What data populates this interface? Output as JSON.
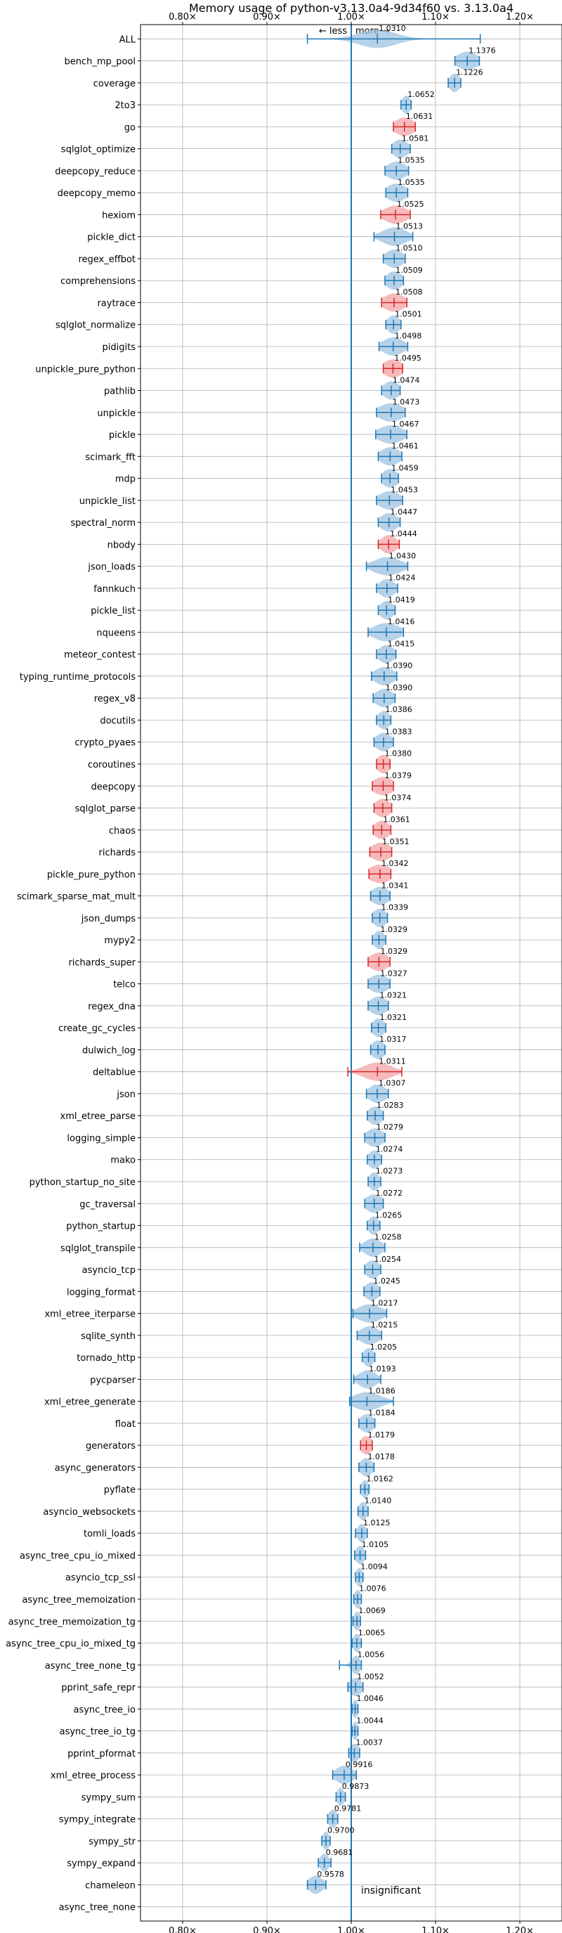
{
  "chart_data": {
    "type": "violin",
    "title": "Memory usage of python-v3.13.0a4-9d34f60 vs. 3.13.0a4",
    "direction_labels": {
      "less": "← less",
      "more": "more →"
    },
    "xlim": [
      0.75,
      1.25
    ],
    "x_ticks": [
      0.8,
      0.9,
      1.0,
      1.1,
      1.2
    ],
    "x_tick_labels": [
      "0.80×",
      "0.90×",
      "1.00×",
      "1.10×",
      "1.20×"
    ],
    "grid": true,
    "reference_x": 1.0,
    "colors": {
      "normal": "#1f77b4",
      "highlight": "#d62728"
    },
    "insignificant_label": "insignificant",
    "benchmarks": [
      {
        "name": "ALL",
        "value": 1.031,
        "low": 0.948,
        "high": 1.153,
        "spread": 0.022,
        "label": "1.0310",
        "highlight": false
      },
      {
        "name": "bench_mp_pool",
        "value": 1.1376,
        "low": 1.123,
        "high": 1.152,
        "spread": 0.012,
        "label": "1.1376",
        "highlight": false
      },
      {
        "name": "coverage",
        "value": 1.1226,
        "low": 1.115,
        "high": 1.13,
        "spread": 0.006,
        "label": "1.1226",
        "highlight": false
      },
      {
        "name": "2to3",
        "value": 1.0652,
        "low": 1.059,
        "high": 1.071,
        "spread": 0.005,
        "label": "1.0652",
        "highlight": false
      },
      {
        "name": "go",
        "value": 1.0631,
        "low": 1.05,
        "high": 1.076,
        "spread": 0.011,
        "label": "1.0631",
        "highlight": true
      },
      {
        "name": "sqlglot_optimize",
        "value": 1.0581,
        "low": 1.048,
        "high": 1.07,
        "spread": 0.009,
        "label": "1.0581",
        "highlight": false
      },
      {
        "name": "deepcopy_reduce",
        "value": 1.0535,
        "low": 1.04,
        "high": 1.068,
        "spread": 0.011,
        "label": "1.0535",
        "highlight": false
      },
      {
        "name": "deepcopy_memo",
        "value": 1.0535,
        "low": 1.041,
        "high": 1.067,
        "spread": 0.011,
        "label": "1.0535",
        "highlight": false
      },
      {
        "name": "hexiom",
        "value": 1.0525,
        "low": 1.035,
        "high": 1.07,
        "spread": 0.013,
        "label": "1.0525",
        "highlight": true
      },
      {
        "name": "pickle_dict",
        "value": 1.0513,
        "low": 1.027,
        "high": 1.073,
        "spread": 0.014,
        "label": "1.0513",
        "highlight": false
      },
      {
        "name": "regex_effbot",
        "value": 1.051,
        "low": 1.038,
        "high": 1.064,
        "spread": 0.01,
        "label": "1.0510",
        "highlight": false
      },
      {
        "name": "comprehensions",
        "value": 1.0509,
        "low": 1.04,
        "high": 1.062,
        "spread": 0.009,
        "label": "1.0509",
        "highlight": false
      },
      {
        "name": "raytrace",
        "value": 1.0508,
        "low": 1.036,
        "high": 1.066,
        "spread": 0.012,
        "label": "1.0508",
        "highlight": true
      },
      {
        "name": "sqlglot_normalize",
        "value": 1.0501,
        "low": 1.041,
        "high": 1.059,
        "spread": 0.007,
        "label": "1.0501",
        "highlight": false
      },
      {
        "name": "pidigits",
        "value": 1.0498,
        "low": 1.033,
        "high": 1.067,
        "spread": 0.012,
        "label": "1.0498",
        "highlight": false
      },
      {
        "name": "unpickle_pure_python",
        "value": 1.0495,
        "low": 1.038,
        "high": 1.061,
        "spread": 0.011,
        "label": "1.0495",
        "highlight": true
      },
      {
        "name": "pathlib",
        "value": 1.0474,
        "low": 1.036,
        "high": 1.058,
        "spread": 0.009,
        "label": "1.0474",
        "highlight": false
      },
      {
        "name": "unpickle",
        "value": 1.0473,
        "low": 1.03,
        "high": 1.064,
        "spread": 0.014,
        "label": "1.0473",
        "highlight": false
      },
      {
        "name": "pickle",
        "value": 1.0467,
        "low": 1.029,
        "high": 1.066,
        "spread": 0.014,
        "label": "1.0467",
        "highlight": false
      },
      {
        "name": "scimark_fft",
        "value": 1.0461,
        "low": 1.032,
        "high": 1.06,
        "spread": 0.011,
        "label": "1.0461",
        "highlight": false
      },
      {
        "name": "mdp",
        "value": 1.0459,
        "low": 1.036,
        "high": 1.056,
        "spread": 0.009,
        "label": "1.0459",
        "highlight": false
      },
      {
        "name": "unpickle_list",
        "value": 1.0453,
        "low": 1.03,
        "high": 1.061,
        "spread": 0.012,
        "label": "1.0453",
        "highlight": false
      },
      {
        "name": "spectral_norm",
        "value": 1.0447,
        "low": 1.032,
        "high": 1.058,
        "spread": 0.01,
        "label": "1.0447",
        "highlight": false
      },
      {
        "name": "nbody",
        "value": 1.0444,
        "low": 1.032,
        "high": 1.057,
        "spread": 0.009,
        "label": "1.0444",
        "highlight": true
      },
      {
        "name": "json_loads",
        "value": 1.043,
        "low": 1.018,
        "high": 1.067,
        "spread": 0.016,
        "label": "1.0430",
        "highlight": false
      },
      {
        "name": "fannkuch",
        "value": 1.0424,
        "low": 1.03,
        "high": 1.055,
        "spread": 0.009,
        "label": "1.0424",
        "highlight": false
      },
      {
        "name": "pickle_list",
        "value": 1.0419,
        "low": 1.032,
        "high": 1.052,
        "spread": 0.008,
        "label": "1.0419",
        "highlight": false
      },
      {
        "name": "nqueens",
        "value": 1.0416,
        "low": 1.02,
        "high": 1.062,
        "spread": 0.015,
        "label": "1.0416",
        "highlight": false
      },
      {
        "name": "meteor_contest",
        "value": 1.0415,
        "low": 1.03,
        "high": 1.053,
        "spread": 0.009,
        "label": "1.0415",
        "highlight": false
      },
      {
        "name": "typing_runtime_protocols",
        "value": 1.039,
        "low": 1.024,
        "high": 1.054,
        "spread": 0.011,
        "label": "1.0390",
        "highlight": false
      },
      {
        "name": "regex_v8",
        "value": 1.039,
        "low": 1.026,
        "high": 1.052,
        "spread": 0.01,
        "label": "1.0390",
        "highlight": false
      },
      {
        "name": "docutils",
        "value": 1.0386,
        "low": 1.03,
        "high": 1.047,
        "spread": 0.007,
        "label": "1.0386",
        "highlight": false
      },
      {
        "name": "crypto_pyaes",
        "value": 1.0383,
        "low": 1.027,
        "high": 1.05,
        "spread": 0.009,
        "label": "1.0383",
        "highlight": false
      },
      {
        "name": "coroutines",
        "value": 1.038,
        "low": 1.03,
        "high": 1.046,
        "spread": 0.008,
        "label": "1.0380",
        "highlight": true
      },
      {
        "name": "deepcopy",
        "value": 1.0379,
        "low": 1.025,
        "high": 1.05,
        "spread": 0.012,
        "label": "1.0379",
        "highlight": true
      },
      {
        "name": "sqlglot_parse",
        "value": 1.0374,
        "low": 1.027,
        "high": 1.048,
        "spread": 0.009,
        "label": "1.0374",
        "highlight": true
      },
      {
        "name": "chaos",
        "value": 1.0361,
        "low": 1.026,
        "high": 1.047,
        "spread": 0.009,
        "label": "1.0361",
        "highlight": true
      },
      {
        "name": "richards",
        "value": 1.0351,
        "low": 1.022,
        "high": 1.048,
        "spread": 0.012,
        "label": "1.0351",
        "highlight": true
      },
      {
        "name": "pickle_pure_python",
        "value": 1.0342,
        "low": 1.021,
        "high": 1.047,
        "spread": 0.013,
        "label": "1.0342",
        "highlight": true
      },
      {
        "name": "scimark_sparse_mat_mult",
        "value": 1.0341,
        "low": 1.023,
        "high": 1.046,
        "spread": 0.01,
        "label": "1.0341",
        "highlight": false
      },
      {
        "name": "json_dumps",
        "value": 1.0339,
        "low": 1.025,
        "high": 1.043,
        "spread": 0.008,
        "label": "1.0339",
        "highlight": false
      },
      {
        "name": "mypy2",
        "value": 1.0329,
        "low": 1.025,
        "high": 1.041,
        "spread": 0.006,
        "label": "1.0329",
        "highlight": false
      },
      {
        "name": "richards_super",
        "value": 1.0329,
        "low": 1.02,
        "high": 1.046,
        "spread": 0.011,
        "label": "1.0329",
        "highlight": true
      },
      {
        "name": "telco",
        "value": 1.0327,
        "low": 1.02,
        "high": 1.046,
        "spread": 0.011,
        "label": "1.0327",
        "highlight": false
      },
      {
        "name": "regex_dna",
        "value": 1.0321,
        "low": 1.02,
        "high": 1.044,
        "spread": 0.01,
        "label": "1.0321",
        "highlight": false
      },
      {
        "name": "create_gc_cycles",
        "value": 1.0321,
        "low": 1.024,
        "high": 1.041,
        "spread": 0.007,
        "label": "1.0321",
        "highlight": false
      },
      {
        "name": "dulwich_log",
        "value": 1.0317,
        "low": 1.023,
        "high": 1.04,
        "spread": 0.008,
        "label": "1.0317",
        "highlight": false
      },
      {
        "name": "deltablue",
        "value": 1.0311,
        "low": 0.996,
        "high": 1.06,
        "spread": 0.016,
        "label": "1.0311",
        "highlight": true
      },
      {
        "name": "json",
        "value": 1.0307,
        "low": 1.018,
        "high": 1.044,
        "spread": 0.01,
        "label": "1.0307",
        "highlight": false
      },
      {
        "name": "xml_etree_parse",
        "value": 1.0283,
        "low": 1.019,
        "high": 1.038,
        "spread": 0.008,
        "label": "1.0283",
        "highlight": false
      },
      {
        "name": "logging_simple",
        "value": 1.0279,
        "low": 1.016,
        "high": 1.04,
        "spread": 0.01,
        "label": "1.0279",
        "highlight": false
      },
      {
        "name": "mako",
        "value": 1.0274,
        "low": 1.019,
        "high": 1.036,
        "spread": 0.007,
        "label": "1.0274",
        "highlight": false
      },
      {
        "name": "python_startup_no_site",
        "value": 1.0273,
        "low": 1.02,
        "high": 1.035,
        "spread": 0.006,
        "label": "1.0273",
        "highlight": false
      },
      {
        "name": "gc_traversal",
        "value": 1.0272,
        "low": 1.016,
        "high": 1.038,
        "spread": 0.01,
        "label": "1.0272",
        "highlight": false
      },
      {
        "name": "python_startup",
        "value": 1.0265,
        "low": 1.019,
        "high": 1.034,
        "spread": 0.006,
        "label": "1.0265",
        "highlight": false
      },
      {
        "name": "sqlglot_transpile",
        "value": 1.0258,
        "low": 1.01,
        "high": 1.04,
        "spread": 0.01,
        "label": "1.0258",
        "highlight": false
      },
      {
        "name": "asyncio_tcp",
        "value": 1.0254,
        "low": 1.016,
        "high": 1.035,
        "spread": 0.008,
        "label": "1.0254",
        "highlight": false
      },
      {
        "name": "logging_format",
        "value": 1.0245,
        "low": 1.015,
        "high": 1.034,
        "spread": 0.008,
        "label": "1.0245",
        "highlight": false
      },
      {
        "name": "xml_etree_iterparse",
        "value": 1.0217,
        "low": 1.002,
        "high": 1.042,
        "spread": 0.014,
        "label": "1.0217",
        "highlight": false
      },
      {
        "name": "sqlite_synth",
        "value": 1.0215,
        "low": 1.007,
        "high": 1.036,
        "spread": 0.011,
        "label": "1.0215",
        "highlight": false
      },
      {
        "name": "tornado_http",
        "value": 1.0205,
        "low": 1.013,
        "high": 1.028,
        "spread": 0.006,
        "label": "1.0205",
        "highlight": false
      },
      {
        "name": "pycparser",
        "value": 1.0193,
        "low": 1.003,
        "high": 1.035,
        "spread": 0.01,
        "label": "1.0193",
        "highlight": false
      },
      {
        "name": "xml_etree_generate",
        "value": 1.0186,
        "low": 0.998,
        "high": 1.05,
        "spread": 0.016,
        "label": "1.0186",
        "highlight": false
      },
      {
        "name": "float",
        "value": 1.0184,
        "low": 1.009,
        "high": 1.028,
        "spread": 0.008,
        "label": "1.0184",
        "highlight": false
      },
      {
        "name": "generators",
        "value": 1.0179,
        "low": 1.011,
        "high": 1.025,
        "spread": 0.007,
        "label": "1.0179",
        "highlight": true
      },
      {
        "name": "async_generators",
        "value": 1.0178,
        "low": 1.009,
        "high": 1.027,
        "spread": 0.007,
        "label": "1.0178",
        "highlight": false
      },
      {
        "name": "pyflate",
        "value": 1.0162,
        "low": 1.011,
        "high": 1.021,
        "spread": 0.004,
        "label": "1.0162",
        "highlight": false
      },
      {
        "name": "asyncio_websockets",
        "value": 1.014,
        "low": 1.008,
        "high": 1.02,
        "spread": 0.005,
        "label": "1.0140",
        "highlight": false
      },
      {
        "name": "tomli_loads",
        "value": 1.0125,
        "low": 1.005,
        "high": 1.019,
        "spread": 0.005,
        "label": "1.0125",
        "highlight": false
      },
      {
        "name": "async_tree_cpu_io_mixed",
        "value": 1.0105,
        "low": 1.004,
        "high": 1.017,
        "spread": 0.005,
        "label": "1.0105",
        "highlight": false
      },
      {
        "name": "asyncio_tcp_ssl",
        "value": 1.0094,
        "low": 1.005,
        "high": 1.014,
        "spread": 0.004,
        "label": "1.0094",
        "highlight": false
      },
      {
        "name": "async_tree_memoization",
        "value": 1.0076,
        "low": 1.003,
        "high": 1.012,
        "spread": 0.004,
        "label": "1.0076",
        "highlight": false
      },
      {
        "name": "async_tree_memoization_tg",
        "value": 1.0069,
        "low": 1.002,
        "high": 1.011,
        "spread": 0.004,
        "label": "1.0069",
        "highlight": false
      },
      {
        "name": "async_tree_cpu_io_mixed_tg",
        "value": 1.0065,
        "low": 1.001,
        "high": 1.012,
        "spread": 0.004,
        "label": "1.0065",
        "highlight": false
      },
      {
        "name": "async_tree_none_tg",
        "value": 1.0056,
        "low": 0.986,
        "high": 1.012,
        "spread": 0.005,
        "label": "1.0056",
        "highlight": false
      },
      {
        "name": "pprint_safe_repr",
        "value": 1.0052,
        "low": 0.996,
        "high": 1.014,
        "spread": 0.007,
        "label": "1.0052",
        "highlight": false
      },
      {
        "name": "async_tree_io",
        "value": 1.0046,
        "low": 1.001,
        "high": 1.008,
        "spread": 0.003,
        "label": "1.0046",
        "highlight": false
      },
      {
        "name": "async_tree_io_tg",
        "value": 1.0044,
        "low": 1.001,
        "high": 1.008,
        "spread": 0.003,
        "label": "1.0044",
        "highlight": false
      },
      {
        "name": "pprint_pformat",
        "value": 1.0037,
        "low": 0.997,
        "high": 1.01,
        "spread": 0.006,
        "label": "1.0037",
        "highlight": false
      },
      {
        "name": "xml_etree_process",
        "value": 0.9916,
        "low": 0.978,
        "high": 1.006,
        "spread": 0.01,
        "label": "0.9916",
        "highlight": false
      },
      {
        "name": "sympy_sum",
        "value": 0.9873,
        "low": 0.982,
        "high": 0.993,
        "spread": 0.004,
        "label": "0.9873",
        "highlight": false
      },
      {
        "name": "sympy_integrate",
        "value": 0.9781,
        "low": 0.972,
        "high": 0.984,
        "spread": 0.005,
        "label": "0.9781",
        "highlight": false
      },
      {
        "name": "sympy_str",
        "value": 0.97,
        "low": 0.965,
        "high": 0.975,
        "spread": 0.004,
        "label": "0.9700",
        "highlight": false
      },
      {
        "name": "sympy_expand",
        "value": 0.9681,
        "low": 0.961,
        "high": 0.976,
        "spread": 0.005,
        "label": "0.9681",
        "highlight": false
      },
      {
        "name": "chameleon",
        "value": 0.9578,
        "low": 0.948,
        "high": 0.97,
        "spread": 0.008,
        "label": "0.9578",
        "highlight": false
      },
      {
        "name": "async_tree_none",
        "value": null,
        "low": null,
        "high": null,
        "spread": null,
        "label": "",
        "highlight": false,
        "insignificant": true
      }
    ]
  }
}
